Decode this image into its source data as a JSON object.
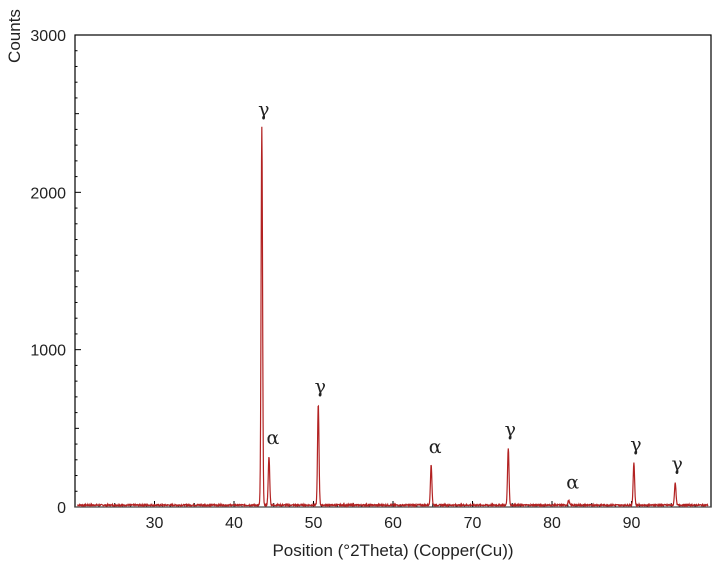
{
  "chart_data": {
    "type": "line",
    "title": "",
    "xlabel": "Position (°2Theta) (Copper(Cu))",
    "ylabel": "Counts",
    "xlim": [
      20,
      100
    ],
    "ylim": [
      0,
      3000
    ],
    "x_ticks": [
      30,
      40,
      50,
      60,
      70,
      80,
      90
    ],
    "x_tick_labels": [
      "30",
      "40",
      "50",
      "60",
      "70",
      "80",
      "90"
    ],
    "y_ticks": [
      0,
      1000,
      2000,
      3000
    ],
    "y_tick_labels": [
      "0",
      "1000",
      "2000",
      "3000"
    ],
    "grid": false,
    "legend": "none",
    "line_color": "#b22222",
    "baseline": 12,
    "peaks": [
      {
        "x": 43.5,
        "y": 2400,
        "label": "γ"
      },
      {
        "x": 44.4,
        "y": 310,
        "label": "α"
      },
      {
        "x": 50.6,
        "y": 640,
        "label": "γ"
      },
      {
        "x": 64.8,
        "y": 255,
        "label": "α"
      },
      {
        "x": 74.5,
        "y": 365,
        "label": "γ"
      },
      {
        "x": 82.1,
        "y": 30,
        "label": "α"
      },
      {
        "x": 90.3,
        "y": 270,
        "label": "γ"
      },
      {
        "x": 95.5,
        "y": 145,
        "label": "γ"
      }
    ]
  }
}
